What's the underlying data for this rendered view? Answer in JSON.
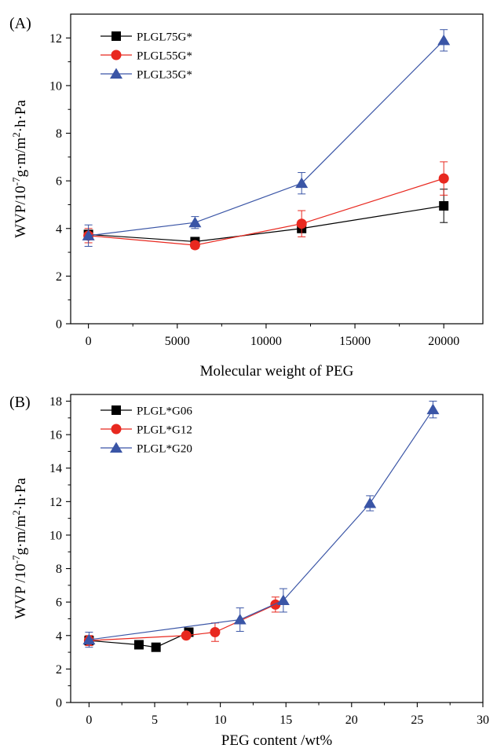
{
  "chart_data": [
    {
      "type": "line",
      "panel_label": "(A)",
      "title": "",
      "xlabel": "Molecular weight of PEG",
      "ylabel": {
        "prefix": "WVP/10",
        "exp1": "-7",
        "mid": "g·m/m",
        "exp2": "2",
        "suffix": "·h·Pa"
      },
      "xlim": [
        -1000,
        22200
      ],
      "ylim": [
        0,
        13
      ],
      "xticks": [
        0,
        5000,
        10000,
        15000,
        20000
      ],
      "yticks": [
        0,
        2,
        4,
        6,
        8,
        10,
        12
      ],
      "legend_position": "top-left",
      "grid": false,
      "series": [
        {
          "name": "PLGL75G*",
          "marker": "square",
          "color": "#000000",
          "x": [
            0,
            6000,
            12000,
            20000
          ],
          "y": [
            3.75,
            3.45,
            4.0,
            4.95
          ],
          "err": [
            0.15,
            0.1,
            0.15,
            0.7
          ]
        },
        {
          "name": "PLGL55G*",
          "marker": "circle",
          "color": "#e8281f",
          "x": [
            0,
            6000,
            12000,
            20000
          ],
          "y": [
            3.7,
            3.3,
            4.2,
            6.1
          ],
          "err": [
            0.3,
            0.15,
            0.55,
            0.7
          ]
        },
        {
          "name": "PLGL35G*",
          "marker": "triangle",
          "color": "#3a55a6",
          "x": [
            0,
            6000,
            12000,
            20000
          ],
          "y": [
            3.7,
            4.25,
            5.9,
            11.9
          ],
          "err": [
            0.45,
            0.25,
            0.45,
            0.45
          ]
        }
      ]
    },
    {
      "type": "line",
      "panel_label": "(B)",
      "title": "",
      "xlabel": "PEG content /wt%",
      "ylabel": {
        "prefix": "WVP /10",
        "exp1": "-7",
        "mid": "g·m/m",
        "exp2": "2",
        "suffix": "·h·Pa"
      },
      "xlim": [
        -1.4,
        30
      ],
      "ylim": [
        0,
        18.4
      ],
      "xticks": [
        0,
        5,
        10,
        15,
        20,
        25,
        30
      ],
      "yticks": [
        0,
        2,
        4,
        6,
        8,
        10,
        12,
        14,
        16,
        18
      ],
      "legend_position": "top-left",
      "grid": false,
      "series": [
        {
          "name": "PLGL*G06",
          "marker": "square",
          "color": "#000000",
          "x": [
            0,
            3.8,
            5.1,
            7.6
          ],
          "y": [
            3.7,
            3.45,
            3.3,
            4.2
          ],
          "err": [
            0.15,
            0.1,
            0.1,
            0.15
          ]
        },
        {
          "name": "PLGL*G12",
          "marker": "circle",
          "color": "#e8281f",
          "x": [
            0,
            7.4,
            9.6,
            14.2
          ],
          "y": [
            3.7,
            4.0,
            4.2,
            5.85
          ],
          "err": [
            0.3,
            0.15,
            0.55,
            0.45
          ]
        },
        {
          "name": "PLGL*G20",
          "marker": "triangle",
          "color": "#3a55a6",
          "x": [
            0,
            11.5,
            14.8,
            21.4,
            26.2
          ],
          "y": [
            3.75,
            4.95,
            6.1,
            11.9,
            17.5
          ],
          "err": [
            0.45,
            0.7,
            0.7,
            0.45,
            0.5
          ]
        }
      ]
    }
  ]
}
